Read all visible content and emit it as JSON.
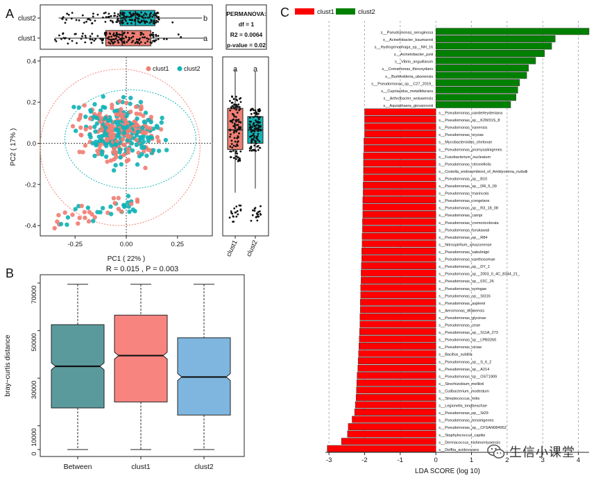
{
  "panels": {
    "a": "A",
    "b": "B",
    "c": "C"
  },
  "chart_data": [
    {
      "id": "pcoa",
      "type": "scatter",
      "xlabel": "PC1 ( 22% )",
      "ylabel": "PC2 ( 17% )",
      "xlim": [
        -0.42,
        0.42
      ],
      "ylim": [
        -0.45,
        0.42
      ],
      "xticks": [
        -0.25,
        0,
        0.25
      ],
      "xtick_labels": [
        "-0.25",
        "0.00",
        "0.25"
      ],
      "yticks": [
        0.4,
        0.2,
        0,
        -0.2,
        -0.4
      ],
      "ytick_labels": [
        "0.4",
        "0.2",
        "0.0",
        "-0.2",
        "-0.4"
      ],
      "legend": [
        "clust1",
        "clust2"
      ],
      "colors": {
        "clust1": "#f07f74",
        "clust2": "#11b3b6"
      },
      "ellipses": [
        {
          "group": "clust1",
          "cx": -0.03,
          "cy": -0.02,
          "rx": 0.39,
          "ry": 0.38
        },
        {
          "group": "clust2",
          "cx": 0.02,
          "cy": 0.02,
          "rx": 0.32,
          "ry": 0.24
        }
      ]
    },
    {
      "id": "pc1_box",
      "type": "box",
      "categories": [
        "clust2",
        "clust1"
      ],
      "series": [
        {
          "name": "clust2",
          "min": -0.33,
          "q1": -0.03,
          "median": 0.045,
          "q3": 0.14,
          "max": 0.37,
          "letter": "b",
          "color": "#11b3b6"
        },
        {
          "name": "clust1",
          "min": -0.35,
          "q1": -0.1,
          "median": -0.02,
          "q3": 0.12,
          "max": 0.38,
          "letter": "a",
          "color": "#f07f74"
        }
      ]
    },
    {
      "id": "stats",
      "type": "table",
      "lines": [
        "PERMANOVA:",
        "df = 1",
        "R2 = 0.0064",
        "p-value = 0.02"
      ]
    },
    {
      "id": "pc2_box",
      "type": "box",
      "categories": [
        "clust1",
        "clust2"
      ],
      "series": [
        {
          "name": "clust1",
          "min": -0.24,
          "q1": -0.03,
          "median": 0.065,
          "q3": 0.17,
          "max": 0.36,
          "letter": "a",
          "color": "#f07f74"
        },
        {
          "name": "clust2",
          "min": -0.22,
          "q1": 0.0,
          "median": 0.065,
          "q3": 0.13,
          "max": 0.35,
          "letter": "a",
          "color": "#11b3b6"
        }
      ]
    },
    {
      "id": "anosim",
      "type": "box",
      "title": "R = 0.015 ,  P = 0.003",
      "ylabel": "bray−curtis distance",
      "ylim": [
        0,
        70000
      ],
      "yticks": [
        0,
        10000,
        30000,
        50000,
        70000
      ],
      "categories": [
        "Between",
        "clust1",
        "clust2"
      ],
      "series": [
        {
          "name": "Between",
          "min": 0,
          "q1": 17500,
          "median": 35000,
          "q3": 52500,
          "max": 69500,
          "color": "#5b9a9c"
        },
        {
          "name": "clust1",
          "min": 0,
          "q1": 20000,
          "median": 39500,
          "q3": 56500,
          "max": 69500,
          "color": "#f88480"
        },
        {
          "name": "clust2",
          "min": 0,
          "q1": 14500,
          "median": 30500,
          "q3": 47000,
          "max": 69500,
          "color": "#7eb6e0"
        }
      ]
    },
    {
      "id": "lefse",
      "type": "bar",
      "xlabel": "LDA SCORE (log 10)",
      "xlim": [
        -3.1,
        4.3
      ],
      "xticks": [
        -3,
        -2,
        -1,
        0,
        1,
        2,
        3,
        4
      ],
      "legend": [
        "clust1",
        "clust2"
      ],
      "colors": {
        "clust1": "#ff0000",
        "clust2": "#008000"
      },
      "categories": [
        "s__Pseudomonas_aeruginosa",
        "s__Acinetobacter_baumannii",
        "s__Hydrogenophaga_sp__NH_16",
        "s__Acinetobacter_junii",
        "s__Vibrio_anguillarum",
        "s__Comamonas_thiooxydans",
        "s__Burkholderia_ubonensis",
        "s__Pseudomonas_sp__C27_2019_",
        "s__Cupriavidus_metallidurans",
        "s__Arthrobacter_woluwensis",
        "s__Aquisphaera_giovannonii",
        "s__Pseudomonas_vanderleydeniana",
        "s__Pseudomonas_sp__K2W31S_8",
        "s__Pseudomonas_iranensis",
        "s__Pseudomonas_oryzae",
        "s__Mycobacteroides_chelonae",
        "s__Pseudomonas_promysalinigenes",
        "s__Fusobacterium_nucleatum",
        "s__Pseudomonas_citronellolis",
        "s__Coxiella_endosymbiont_of_Amblyomma_nuttalli",
        "s__Pseudomonas_sp__B10",
        "s__Pseudomonas_sp__DR_5_09",
        "s__Pseudomonas_marincola",
        "s__Pseudomonas_congelans",
        "s__Pseudomonas_sp__R3_18_08",
        "s__Pseudomonas_campi",
        "s__Pseudomonas_cremoricolorata",
        "s__Pseudomonas_furukawaii",
        "s__Pseudomonas_sp__R84",
        "s__Nitrospirillum_amazonense",
        "s__Pseudomonas_sabulinigri",
        "s__Pseudomonas_xanthosomae",
        "s__Pseudomonas_sp__DY_1",
        "s__Pseudomonas_sp__2003_0_4C_8344_21_",
        "s__Pseudomonas_sp__02C_26",
        "s__Pseudomonas_syringae",
        "s__Pseudomonas_sp__St316",
        "s__Pseudomonas_asplenii",
        "s__Aeromonas_dhakensis",
        "s__Pseudomonas_glycinae",
        "s__Pseudomonas_zeae",
        "s__Pseudomonas_sp__S11A_273",
        "s__Pseudomonas_sp__LPB0260",
        "s__Pseudomonas_viciae",
        "s__Bacillus_subtilis",
        "s__Pseudomonas_sp__S_6_2",
        "s__Pseudomonas_sp__A214",
        "s__Pseudomonas_sp__OST1909",
        "s__Sinorhizobium_meliloti",
        "s__Cutibacterium_modestum",
        "s__Streptococcus_mitis",
        "s__Legionella_longbeachae",
        "s__Pseudomonas_sp__St29",
        "s__Pseudomonas_tensinigenes",
        "s__Pseudomonas_sp__CFSAN084952",
        "s__Staphylococcus_capitis",
        "s__Dermacoccus_nishinomiyaensis",
        "s__Delftia_acidovorans"
      ],
      "values": [
        4.3,
        3.35,
        3.25,
        3.05,
        2.8,
        2.6,
        2.55,
        2.35,
        2.3,
        2.25,
        2.1,
        -2.0,
        -2.0,
        -2.0,
        -2.0,
        -2.02,
        -2.02,
        -2.03,
        -2.03,
        -2.03,
        -2.03,
        -2.04,
        -2.04,
        -2.05,
        -2.05,
        -2.05,
        -2.06,
        -2.06,
        -2.07,
        -2.07,
        -2.08,
        -2.08,
        -2.09,
        -2.1,
        -2.1,
        -2.11,
        -2.11,
        -2.12,
        -2.12,
        -2.13,
        -2.13,
        -2.14,
        -2.15,
        -2.16,
        -2.17,
        -2.18,
        -2.19,
        -2.21,
        -2.22,
        -2.23,
        -2.24,
        -2.26,
        -2.28,
        -2.35,
        -2.46,
        -2.48,
        -2.65,
        -3.05
      ]
    }
  ],
  "watermark": {
    "text": "生信小课堂",
    "icon": "wechat-icon"
  }
}
